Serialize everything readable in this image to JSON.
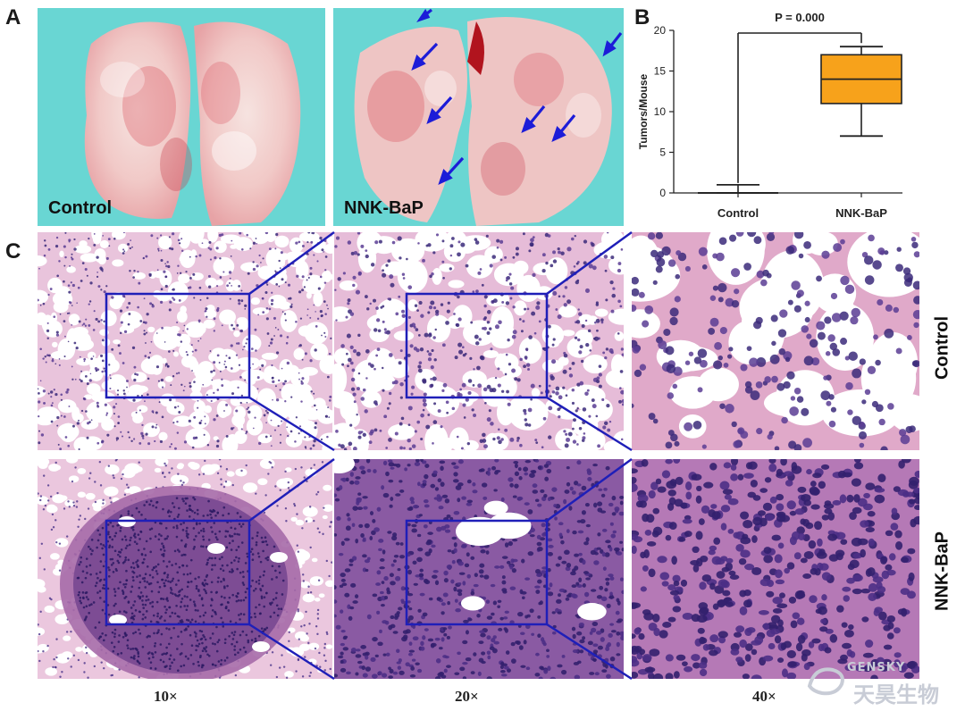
{
  "panels": {
    "a_letter": "A",
    "b_letter": "B",
    "c_letter": "C"
  },
  "photos": {
    "control_label": "Control",
    "nnk_label": "NNK-BaP",
    "background_color": "#5fd3d0"
  },
  "chart_data": {
    "type": "boxplot",
    "ylabel": "Tumors/Mouse",
    "ylim": [
      0,
      20
    ],
    "yticks": [
      0,
      5,
      10,
      15,
      20
    ],
    "categories": [
      "Control",
      "NNK-BaP"
    ],
    "boxes": [
      {
        "category": "Control",
        "min": 0,
        "q1": 0,
        "median": 0,
        "q3": 0,
        "max": 1
      },
      {
        "category": "NNK-BaP",
        "min": 7,
        "q1": 11,
        "median": 14,
        "q3": 17,
        "max": 18
      }
    ],
    "annotation": "P = 0.000",
    "box_color": "#f7a21b"
  },
  "histology": {
    "row_labels": [
      "Control",
      "NNK-BaP"
    ],
    "magnifications": [
      "10×",
      "20×",
      "40×"
    ],
    "frame_color": "#1f1fb8"
  },
  "watermark": {
    "latin": "GENSKY",
    "chinese": "天昊生物"
  }
}
